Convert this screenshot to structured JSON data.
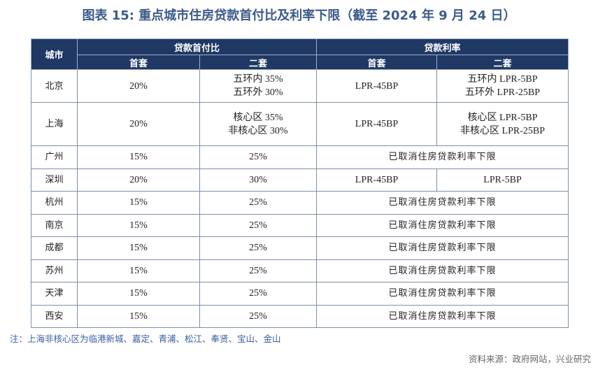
{
  "title": "图表 15: 重点城市住房贷款首付比及利率下限（截至 2024 年 9 月 24 日）",
  "table": {
    "header": {
      "city": "城市",
      "down_payment": "贷款首付比",
      "rate": "贷款利率",
      "first": "首套",
      "second": "二套"
    },
    "rows": [
      {
        "city": "北京",
        "first_down": "20%",
        "second_down": [
          "五环内 35%",
          "五环外 30%"
        ],
        "first_rate": "LPR-45BP",
        "second_rate": [
          "五环内 LPR-5BP",
          "五环外 LPR-25BP"
        ]
      },
      {
        "city": "上海",
        "first_down": "20%",
        "second_down": [
          "核心区 35%",
          "非核心区 30%"
        ],
        "first_rate": "LPR-45BP",
        "second_rate": [
          "核心区 LPR-5BP",
          "非核心区 LPR-25BP"
        ]
      },
      {
        "city": "广州",
        "first_down": "15%",
        "second_down": "25%",
        "rate": "已取消住房贷款利率下限"
      },
      {
        "city": "深圳",
        "first_down": "20%",
        "second_down": "30%",
        "first_rate": "LPR-45BP",
        "second_rate": "LPR-5BP"
      },
      {
        "city": "杭州",
        "first_down": "15%",
        "second_down": "25%",
        "rate": "已取消住房贷款利率下限"
      },
      {
        "city": "南京",
        "first_down": "15%",
        "second_down": "25%",
        "rate": "已取消住房贷款利率下限"
      },
      {
        "city": "成都",
        "first_down": "15%",
        "second_down": "25%",
        "rate": "已取消住房贷款利率下限"
      },
      {
        "city": "苏州",
        "first_down": "15%",
        "second_down": "25%",
        "rate": "已取消住房贷款利率下限"
      },
      {
        "city": "天津",
        "first_down": "15%",
        "second_down": "25%",
        "rate": "已取消住房贷款利率下限"
      },
      {
        "city": "西安",
        "first_down": "15%",
        "second_down": "25%",
        "rate": "已取消住房贷款利率下限"
      }
    ]
  },
  "note": "注：上海非核心区为临港新城、嘉定、青浦、松江、奉贤、宝山、金山",
  "source": "资料来源：政府网站，兴业研究"
}
